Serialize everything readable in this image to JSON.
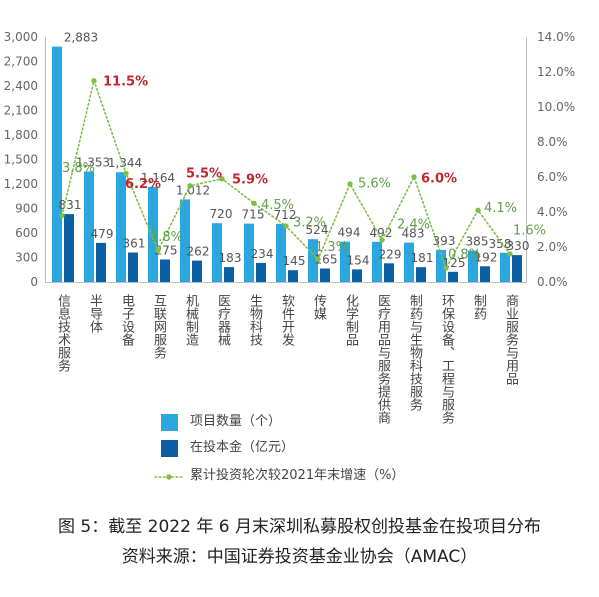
{
  "chart_data": {
    "type": "bar",
    "title": "图 5：截至 2022 年 6 月末深圳私募股权创投基金在投项目分布",
    "source": "资料来源：中国证券投资基金业协会（AMAC）",
    "categories": [
      "信息技术服务",
      "半导体",
      "电子设备",
      "互联网服务",
      "机械制造",
      "医疗器械",
      "生物科技",
      "软件开发",
      "传媒",
      "化学制品",
      "医疗用品与服务提供商",
      "制药与生物科技服务",
      "环保设备、工程与服务",
      "制药",
      "商业服务与用品"
    ],
    "series": [
      {
        "name": "项目数量（个）",
        "color": "#2aa7df",
        "values": [
          2883,
          1353,
          1344,
          1164,
          1012,
          720,
          715,
          712,
          524,
          494,
          492,
          483,
          393,
          385,
          358
        ]
      },
      {
        "name": "在投本金（亿元）",
        "color": "#0c5fa5",
        "values": [
          831,
          479,
          361,
          275,
          262,
          183,
          234,
          145,
          165,
          154,
          229,
          181,
          125,
          192,
          330
        ]
      }
    ],
    "line_series": {
      "name": "累计投资轮次较2021年末增速（%）",
      "color": "#7fbf47",
      "label_color": "#5f9f48",
      "highlight_label_color": "#c1272d",
      "highlighted": [
        false,
        true,
        true,
        false,
        true,
        true,
        false,
        false,
        false,
        false,
        false,
        true,
        false,
        false,
        false
      ],
      "values": [
        3.8,
        11.5,
        6.2,
        1.8,
        5.5,
        5.9,
        4.5,
        3.2,
        1.3,
        5.6,
        2.4,
        6.0,
        0.8,
        4.1,
        1.6
      ]
    },
    "y_left": {
      "ylim": [
        0,
        3000
      ],
      "tick_labels": [
        "0",
        "300",
        "600",
        "900",
        "1,200",
        "1,500",
        "1,800",
        "2,100",
        "2,400",
        "2,700",
        "3,000"
      ]
    },
    "y_right": {
      "ylim": [
        0,
        14
      ],
      "tick_labels": [
        "0.0%",
        "2.0%",
        "4.0%",
        "6.0%",
        "8.0%",
        "10.0%",
        "12.0%",
        "14.0%"
      ]
    },
    "grid": false,
    "legend": "bottom"
  }
}
